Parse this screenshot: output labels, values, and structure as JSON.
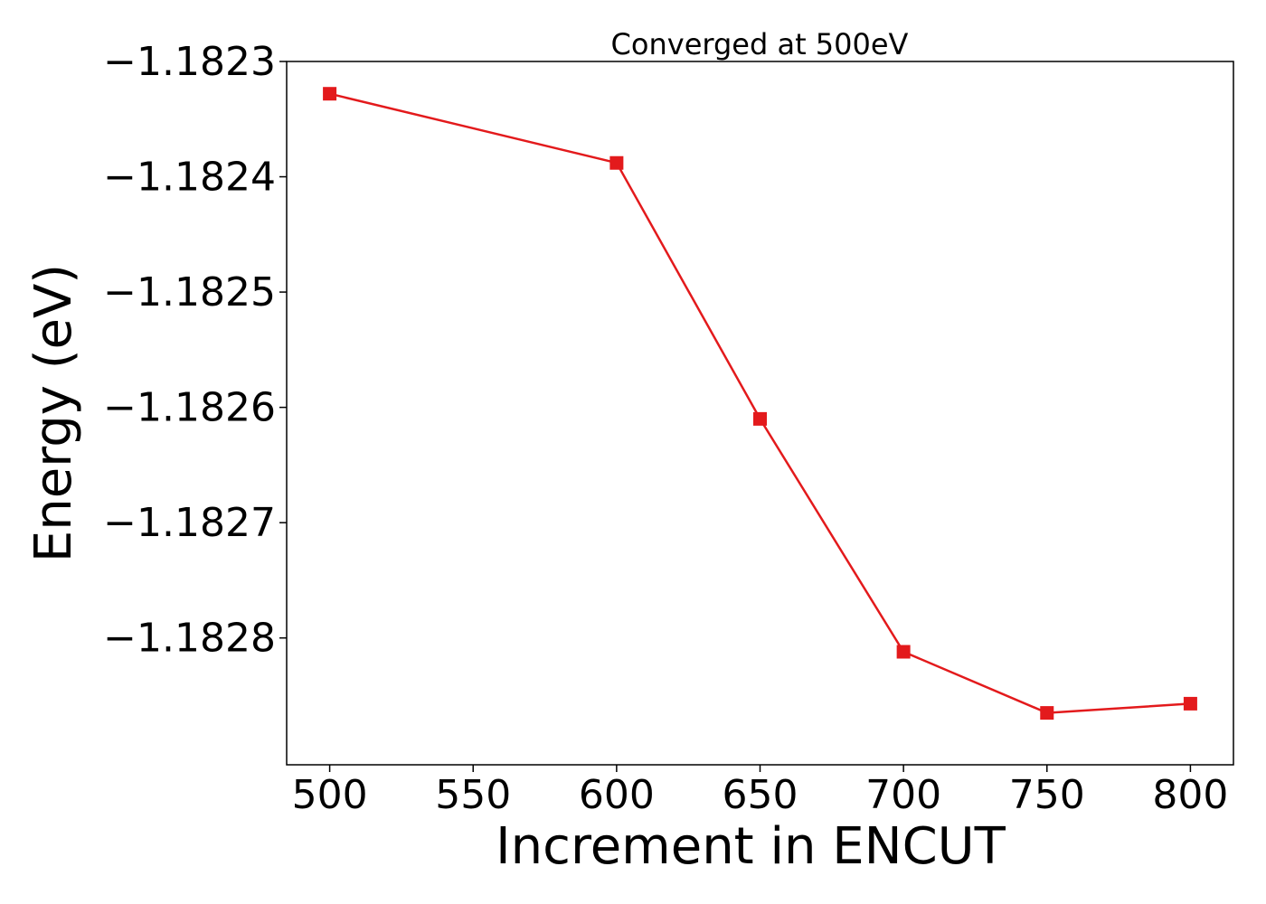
{
  "chart_data": {
    "type": "line",
    "title": "Converged at 500eV",
    "xlabel": "Increment in ENCUT",
    "ylabel": "Energy (eV)",
    "x": [
      500,
      600,
      650,
      700,
      750,
      800
    ],
    "series": [
      {
        "values": [
          -1.182328,
          -1.182388,
          -1.18261,
          -1.182812,
          -1.182865,
          -1.182857
        ],
        "color": "#e31a1c",
        "marker": "square"
      }
    ],
    "xlim": [
      485,
      815
    ],
    "ylim": [
      -1.18291,
      -1.1823
    ],
    "xticks": [
      500,
      550,
      600,
      650,
      700,
      750,
      800
    ],
    "xtick_labels": [
      "500",
      "550",
      "600",
      "650",
      "700",
      "750",
      "800"
    ],
    "yticks": [
      -1.1823,
      -1.1824,
      -1.1825,
      -1.1826,
      -1.1827,
      -1.1828
    ],
    "ytick_labels": [
      "−1.1823",
      "−1.1824",
      "−1.1825",
      "−1.1826",
      "−1.1827",
      "−1.1828"
    ],
    "grid": false,
    "legend": false
  }
}
